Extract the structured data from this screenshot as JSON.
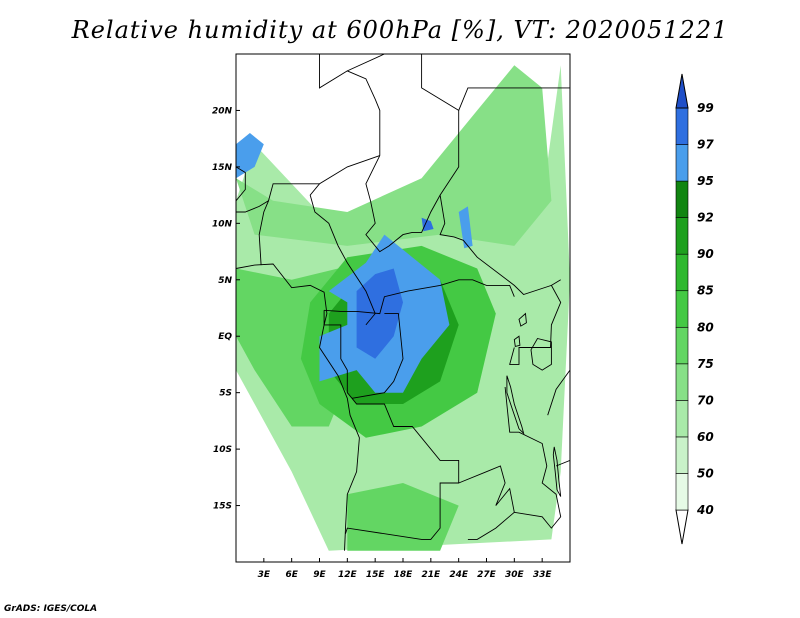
{
  "title": "Relative humidity at 600hPa [%], VT: 2020051221",
  "credit": "GrADS: IGES/COLA",
  "map": {
    "lon_range": [
      0,
      36
    ],
    "lat_range": [
      -20,
      25
    ],
    "lon_ticks": [
      {
        "value": 3,
        "label": "3E"
      },
      {
        "value": 6,
        "label": "6E"
      },
      {
        "value": 9,
        "label": "9E"
      },
      {
        "value": 12,
        "label": "12E"
      },
      {
        "value": 15,
        "label": "15E"
      },
      {
        "value": 18,
        "label": "18E"
      },
      {
        "value": 21,
        "label": "21E"
      },
      {
        "value": 24,
        "label": "24E"
      },
      {
        "value": 27,
        "label": "27E"
      },
      {
        "value": 30,
        "label": "30E"
      },
      {
        "value": 33,
        "label": "33E"
      }
    ],
    "lat_ticks": [
      {
        "value": 20,
        "label": "20N"
      },
      {
        "value": 15,
        "label": "15N"
      },
      {
        "value": 10,
        "label": "10N"
      },
      {
        "value": 5,
        "label": "5N"
      },
      {
        "value": 0,
        "label": "EQ"
      },
      {
        "value": -5,
        "label": "5S"
      },
      {
        "value": -10,
        "label": "10S"
      },
      {
        "value": -15,
        "label": "15S"
      }
    ]
  },
  "colorbar": {
    "levels": [
      "40",
      "50",
      "60",
      "70",
      "75",
      "80",
      "85",
      "90",
      "92",
      "95",
      "97",
      "99"
    ],
    "colors": [
      "#ffffff",
      "#e6fae6",
      "#c9f2c9",
      "#a9eaa9",
      "#87e087",
      "#63d663",
      "#44c944",
      "#2fb82f",
      "#1ea01e",
      "#118511",
      "#4a9eec",
      "#2f6fe0",
      "#1f4fc8"
    ]
  },
  "regions": [
    {
      "name": "green-background",
      "level": 3,
      "points": [
        [
          2,
          17
        ],
        [
          10,
          10
        ],
        [
          24,
          11
        ],
        [
          33,
          12
        ],
        [
          35,
          24
        ],
        [
          36,
          5
        ],
        [
          35,
          -12
        ],
        [
          34,
          -18
        ],
        [
          10,
          -19
        ],
        [
          6,
          -12
        ],
        [
          0,
          -3
        ],
        [
          0,
          12
        ]
      ]
    },
    {
      "name": "north-green-band",
      "level": 4,
      "points": [
        [
          0,
          14
        ],
        [
          4,
          12
        ],
        [
          12,
          11
        ],
        [
          20,
          14
        ],
        [
          26,
          20
        ],
        [
          30,
          24
        ],
        [
          33,
          22
        ],
        [
          34,
          12
        ],
        [
          30,
          8
        ],
        [
          22,
          9
        ],
        [
          12,
          8
        ],
        [
          2,
          9
        ]
      ]
    },
    {
      "name": "gulf-band",
      "level": 5,
      "points": [
        [
          0,
          6
        ],
        [
          6,
          5
        ],
        [
          11,
          6
        ],
        [
          14,
          3
        ],
        [
          12,
          -4
        ],
        [
          10,
          -8
        ],
        [
          6,
          -8
        ],
        [
          2,
          -3
        ],
        [
          0,
          0
        ]
      ]
    },
    {
      "name": "congo-green",
      "level": 6,
      "points": [
        [
          8,
          3
        ],
        [
          12,
          7
        ],
        [
          20,
          8
        ],
        [
          26,
          6
        ],
        [
          28,
          2
        ],
        [
          26,
          -5
        ],
        [
          20,
          -8
        ],
        [
          14,
          -9
        ],
        [
          9,
          -6
        ],
        [
          7,
          -2
        ]
      ]
    },
    {
      "name": "congo-deep",
      "level": 8,
      "points": [
        [
          10,
          2
        ],
        [
          13,
          5
        ],
        [
          18,
          6
        ],
        [
          22,
          5
        ],
        [
          24,
          1
        ],
        [
          22,
          -4
        ],
        [
          18,
          -6
        ],
        [
          13,
          -6
        ],
        [
          10,
          -3
        ]
      ]
    },
    {
      "name": "congo-blue",
      "level": 10,
      "points": [
        [
          10,
          4
        ],
        [
          14,
          6.5
        ],
        [
          16,
          9
        ],
        [
          19,
          7
        ],
        [
          22,
          5
        ],
        [
          23,
          1
        ],
        [
          20,
          -2
        ],
        [
          18,
          -5
        ],
        [
          15,
          -5
        ],
        [
          13,
          -3
        ],
        [
          9,
          -4
        ],
        [
          9,
          0
        ],
        [
          12,
          1
        ],
        [
          12,
          3
        ]
      ]
    },
    {
      "name": "congo-core",
      "level": 11,
      "points": [
        [
          13,
          4
        ],
        [
          15,
          5.5
        ],
        [
          17,
          6
        ],
        [
          18,
          3
        ],
        [
          17,
          0
        ],
        [
          15,
          -2
        ],
        [
          13,
          -1
        ]
      ]
    },
    {
      "name": "sahel-blue-1",
      "level": 10,
      "points": [
        [
          0,
          17
        ],
        [
          1.5,
          18
        ],
        [
          3,
          17
        ],
        [
          2,
          15
        ],
        [
          0,
          14
        ]
      ]
    },
    {
      "name": "sahel-blue-2",
      "level": 11,
      "points": [
        [
          20,
          10.5
        ],
        [
          21,
          10.2
        ],
        [
          21.3,
          9.5
        ],
        [
          20.2,
          9.3
        ]
      ]
    },
    {
      "name": "sahel-blue-3",
      "level": 10,
      "points": [
        [
          24,
          11
        ],
        [
          25,
          11.5
        ],
        [
          25.5,
          8
        ],
        [
          24.6,
          7.8
        ]
      ]
    },
    {
      "name": "south-green",
      "level": 5,
      "points": [
        [
          12,
          -14
        ],
        [
          18,
          -13
        ],
        [
          24,
          -15
        ],
        [
          22,
          -19
        ],
        [
          12,
          -19
        ]
      ]
    }
  ],
  "borders": [
    [
      [
        9,
        25
      ],
      [
        9,
        22
      ],
      [
        12,
        23.5
      ],
      [
        14,
        22.8
      ],
      [
        15,
        21
      ],
      [
        15.5,
        20
      ],
      [
        15.5,
        16
      ]
    ],
    [
      [
        12,
        23.5
      ],
      [
        16,
        25
      ]
    ],
    [
      [
        20,
        25
      ],
      [
        20,
        22
      ],
      [
        24,
        20
      ],
      [
        24,
        15
      ],
      [
        22,
        12.5
      ],
      [
        22.5,
        10
      ],
      [
        22,
        9
      ],
      [
        23.5,
        8.8
      ],
      [
        24.5,
        8.5
      ],
      [
        26,
        7
      ],
      [
        30,
        4.5
      ],
      [
        31,
        3.7
      ],
      [
        34,
        4.5
      ],
      [
        35,
        5
      ]
    ],
    [
      [
        24,
        20
      ],
      [
        25,
        22
      ],
      [
        30,
        22
      ],
      [
        32,
        22
      ],
      [
        34,
        22
      ],
      [
        36,
        22
      ]
    ],
    [
      [
        15.5,
        16
      ],
      [
        14,
        13.5
      ],
      [
        14.5,
        12
      ],
      [
        15,
        10
      ],
      [
        14,
        9
      ],
      [
        15.5,
        7.5
      ],
      [
        16.5,
        8
      ],
      [
        18,
        9
      ],
      [
        19,
        9.2
      ],
      [
        20,
        9.2
      ],
      [
        21,
        11
      ],
      [
        22,
        12.5
      ]
    ],
    [
      [
        15.5,
        16
      ],
      [
        12,
        15
      ],
      [
        9,
        13.5
      ],
      [
        6,
        13.5
      ],
      [
        4,
        13.5
      ],
      [
        3.5,
        12
      ],
      [
        3,
        11
      ],
      [
        2.5,
        9
      ],
      [
        2.7,
        6.3
      ]
    ],
    [
      [
        0,
        11
      ],
      [
        1,
        11
      ],
      [
        2.5,
        11.5
      ],
      [
        3.5,
        12
      ]
    ],
    [
      [
        0,
        15
      ],
      [
        1,
        14.5
      ],
      [
        1,
        13
      ],
      [
        0,
        12
      ]
    ],
    [
      [
        9,
        13.5
      ],
      [
        8,
        12.5
      ],
      [
        8.5,
        11
      ],
      [
        10,
        10
      ],
      [
        11,
        8
      ],
      [
        12,
        6.5
      ],
      [
        14,
        4
      ],
      [
        15,
        2
      ],
      [
        14,
        1
      ]
    ],
    [
      [
        9.5,
        2.3
      ],
      [
        11.3,
        2.2
      ],
      [
        13,
        2.2
      ],
      [
        15.5,
        2
      ],
      [
        16,
        3.5
      ],
      [
        18.5,
        4
      ],
      [
        22,
        4.5
      ],
      [
        24,
        5
      ],
      [
        25.5,
        5
      ],
      [
        27,
        4.5
      ],
      [
        29.5,
        4.5
      ],
      [
        30,
        3.5
      ]
    ],
    [
      [
        9.5,
        2.3
      ],
      [
        9.5,
        1
      ],
      [
        11.3,
        1
      ],
      [
        11.3,
        -2
      ],
      [
        12,
        -3
      ],
      [
        12,
        -5
      ],
      [
        12.5,
        -5.5
      ]
    ],
    [
      [
        16,
        2
      ],
      [
        17.5,
        2
      ],
      [
        18,
        -2
      ],
      [
        17,
        -4
      ],
      [
        16,
        -5
      ],
      [
        12.5,
        -5.5
      ]
    ],
    [
      [
        12.5,
        -5.5
      ],
      [
        13,
        -6
      ],
      [
        16,
        -6
      ],
      [
        17,
        -8
      ],
      [
        19,
        -8
      ],
      [
        22,
        -11
      ],
      [
        24,
        -11
      ],
      [
        24,
        -13
      ],
      [
        22,
        -13
      ],
      [
        22,
        -17
      ],
      [
        21,
        -18
      ],
      [
        20,
        -18
      ],
      [
        12,
        -17
      ],
      [
        11.8,
        -17.5
      ]
    ],
    [
      [
        30,
        -1
      ],
      [
        29.5,
        -2.5
      ],
      [
        30.5,
        -2.5
      ],
      [
        30.5,
        -1
      ],
      [
        33.9,
        -1
      ],
      [
        34,
        1
      ],
      [
        35,
        3
      ],
      [
        34,
        4.5
      ]
    ],
    [
      [
        29,
        -4.5
      ],
      [
        29.5,
        -8.5
      ],
      [
        30.5,
        -8.5
      ],
      [
        33,
        -9.5
      ],
      [
        33.5,
        -11.5
      ],
      [
        33,
        -13
      ],
      [
        34.5,
        -14
      ],
      [
        35,
        -16
      ],
      [
        34,
        -17
      ],
      [
        33,
        -16
      ],
      [
        30,
        -15.6
      ],
      [
        28,
        -17
      ],
      [
        26,
        -18
      ],
      [
        25,
        -18
      ]
    ],
    [
      [
        24,
        -13
      ],
      [
        27,
        -12
      ],
      [
        28.5,
        -11.5
      ],
      [
        29,
        -13
      ],
      [
        28,
        -15
      ],
      [
        29.5,
        -13.5
      ],
      [
        30,
        -15.6
      ]
    ],
    [
      [
        36,
        -11
      ],
      [
        34.5,
        -11.5
      ]
    ]
  ],
  "lakes": [
    [
      [
        32.5,
        -0.2
      ],
      [
        34,
        -0.5
      ],
      [
        34,
        -2.5
      ],
      [
        33,
        -3
      ],
      [
        32,
        -2.5
      ],
      [
        31.8,
        -1.2
      ]
    ],
    [
      [
        29.2,
        -3.5
      ],
      [
        29.6,
        -4.5
      ],
      [
        30,
        -6
      ],
      [
        30.8,
        -8
      ],
      [
        31,
        -8.6
      ],
      [
        30.5,
        -8.2
      ],
      [
        29.8,
        -6.5
      ],
      [
        29.2,
        -5
      ]
    ],
    [
      [
        34.3,
        -9.8
      ],
      [
        34.6,
        -11
      ],
      [
        34.8,
        -12.8
      ],
      [
        35,
        -14.2
      ],
      [
        34.6,
        -13.6
      ],
      [
        34.4,
        -12
      ],
      [
        34.2,
        -10.5
      ]
    ],
    [
      [
        30,
        -0.3
      ],
      [
        30.5,
        0
      ],
      [
        30.6,
        -0.8
      ],
      [
        30.1,
        -0.9
      ]
    ],
    [
      [
        30.5,
        1.5
      ],
      [
        31.2,
        2
      ],
      [
        31.3,
        1.2
      ],
      [
        30.7,
        0.9
      ]
    ]
  ],
  "coastline": [
    [
      [
        0,
        6
      ],
      [
        2,
        6.3
      ],
      [
        4,
        6.4
      ],
      [
        6,
        4.3
      ],
      [
        8,
        4.5
      ],
      [
        9.5,
        3.9
      ],
      [
        9.8,
        2
      ],
      [
        9.5,
        1
      ],
      [
        9,
        -1
      ],
      [
        11,
        -3.5
      ],
      [
        12,
        -5.5
      ],
      [
        12.3,
        -7
      ],
      [
        13.3,
        -9
      ],
      [
        13,
        -12
      ],
      [
        12,
        -14
      ],
      [
        11.8,
        -17
      ],
      [
        11.7,
        -19
      ]
    ],
    [
      [
        36,
        -3
      ],
      [
        34.5,
        -4.7
      ],
      [
        33.6,
        -7
      ]
    ]
  ]
}
